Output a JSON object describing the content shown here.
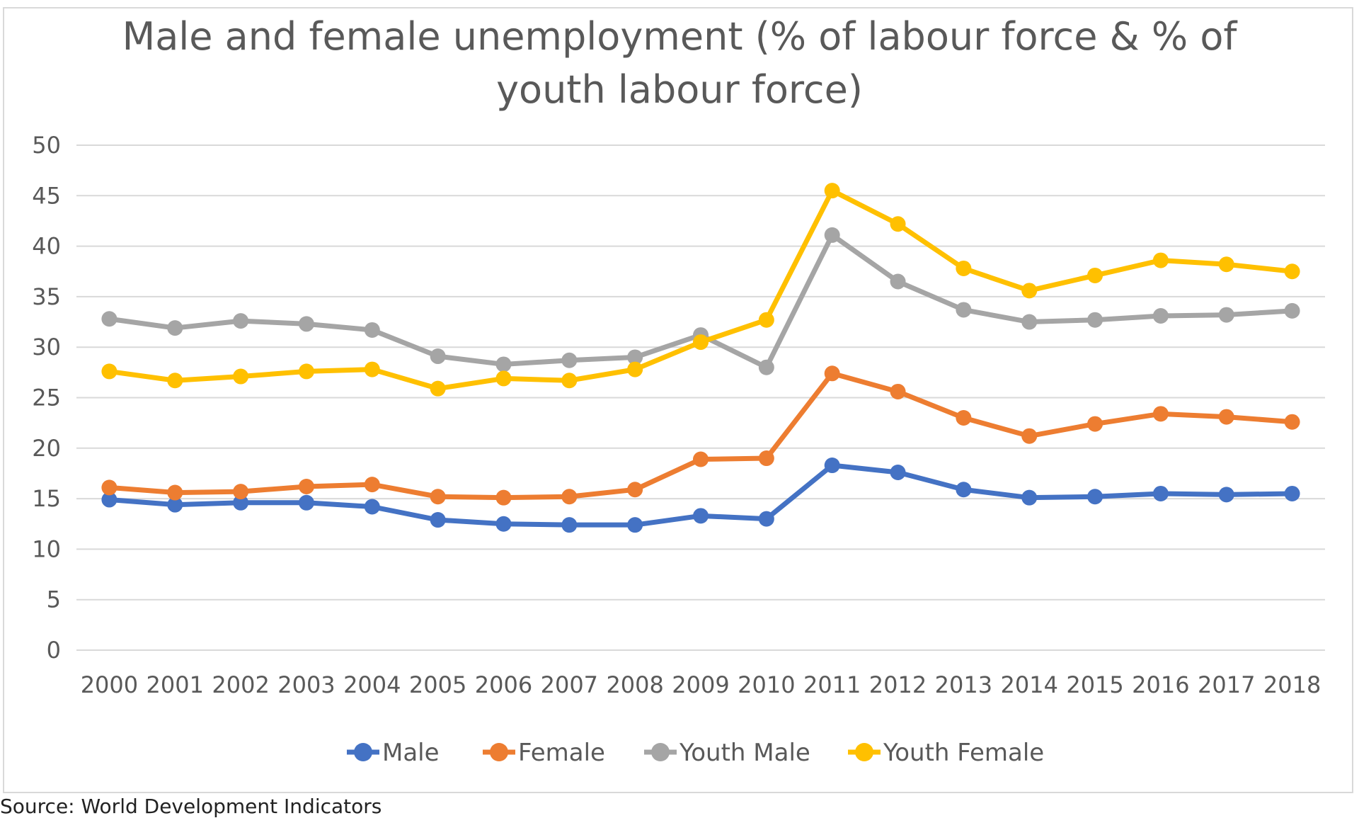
{
  "chart_data": {
    "type": "line",
    "title_lines": [
      "Male and female unemployment (% of labour force  & % of",
      "youth labour force)"
    ],
    "xlabel": "",
    "ylabel": "",
    "ylim": [
      0,
      50
    ],
    "yticks": [
      "0",
      "5",
      "10",
      "15",
      "20",
      "25",
      "30",
      "35",
      "40",
      "45",
      "50"
    ],
    "grid": true,
    "legend_position": "bottom",
    "categories": [
      "2000",
      "2001",
      "2002",
      "2003",
      "2004",
      "2005",
      "2006",
      "2007",
      "2008",
      "2009",
      "2010",
      "2011",
      "2012",
      "2013",
      "2014",
      "2015",
      "2016",
      "2017",
      "2018"
    ],
    "series": [
      {
        "name": "Male",
        "color": "#4472c4",
        "values": [
          14.9,
          14.4,
          14.6,
          14.6,
          14.2,
          12.9,
          12.5,
          12.4,
          12.4,
          13.3,
          13.0,
          18.3,
          17.6,
          15.9,
          15.1,
          15.2,
          15.5,
          15.4,
          15.5
        ]
      },
      {
        "name": "Female",
        "color": "#ed7d31",
        "values": [
          16.1,
          15.6,
          15.7,
          16.2,
          16.4,
          15.2,
          15.1,
          15.2,
          15.9,
          18.9,
          19.0,
          27.4,
          25.6,
          23.0,
          21.2,
          22.4,
          23.4,
          23.1,
          22.6
        ]
      },
      {
        "name": "Youth Male",
        "color": "#a5a5a5",
        "values": [
          32.8,
          31.9,
          32.6,
          32.3,
          31.7,
          29.1,
          28.3,
          28.7,
          29.0,
          31.2,
          28.0,
          41.1,
          36.5,
          33.7,
          32.5,
          32.7,
          33.1,
          33.2,
          33.6
        ]
      },
      {
        "name": "Youth Female",
        "color": "#ffc000",
        "values": [
          27.6,
          26.7,
          27.1,
          27.6,
          27.8,
          25.9,
          26.9,
          26.7,
          27.8,
          30.5,
          32.7,
          45.5,
          42.2,
          37.8,
          35.6,
          37.1,
          38.6,
          38.2,
          37.5
        ]
      }
    ]
  },
  "footer": {
    "text": "Source: World Development Indicators"
  }
}
